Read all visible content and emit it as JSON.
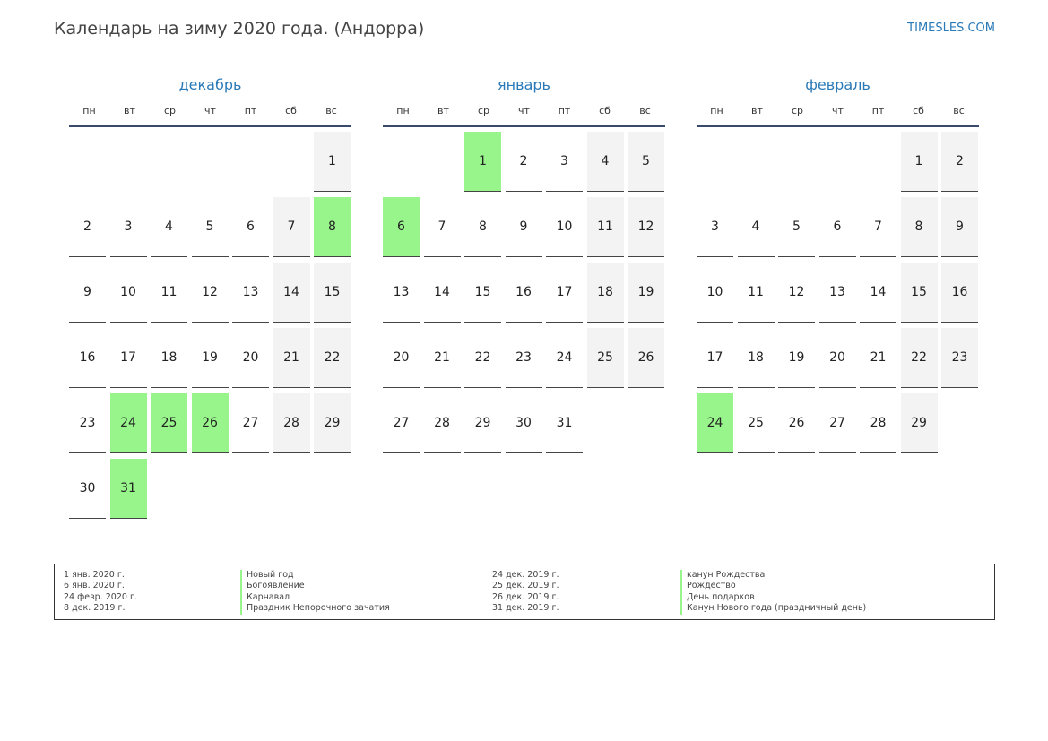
{
  "header": {
    "title": "Календарь на зиму 2020 года. (Андорра)",
    "site": "TIMESLES.COM"
  },
  "colors": {
    "holiday": "#98f58b",
    "weekend": "#f3f3f3",
    "accent": "#2a7ab8"
  },
  "weekdays": [
    "пн",
    "вт",
    "ср",
    "чт",
    "пт",
    "сб",
    "вс"
  ],
  "months": [
    {
      "name": "декабрь",
      "start_weekday": 6,
      "days": 31,
      "holidays": [
        8,
        24,
        25,
        26,
        31
      ]
    },
    {
      "name": "январь",
      "start_weekday": 2,
      "days": 31,
      "holidays": [
        1,
        6
      ]
    },
    {
      "name": "февраль",
      "start_weekday": 5,
      "days": 29,
      "holidays": [
        24
      ]
    }
  ],
  "legend": {
    "left": [
      {
        "date": "1 янв. 2020 г.",
        "name": "Новый год"
      },
      {
        "date": "6 янв. 2020 г.",
        "name": "Богоявление"
      },
      {
        "date": "24 февр. 2020 г.",
        "name": "Карнавал"
      },
      {
        "date": "8 дек. 2019 г.",
        "name": "Праздник Непорочного зачатия"
      }
    ],
    "right": [
      {
        "date": "24 дек. 2019 г.",
        "name": "канун Рождества"
      },
      {
        "date": "25 дек. 2019 г.",
        "name": "Рождество"
      },
      {
        "date": "26 дек. 2019 г.",
        "name": "День подарков"
      },
      {
        "date": "31 дек. 2019 г.",
        "name": "Канун Нового года (праздничный день)"
      }
    ]
  }
}
